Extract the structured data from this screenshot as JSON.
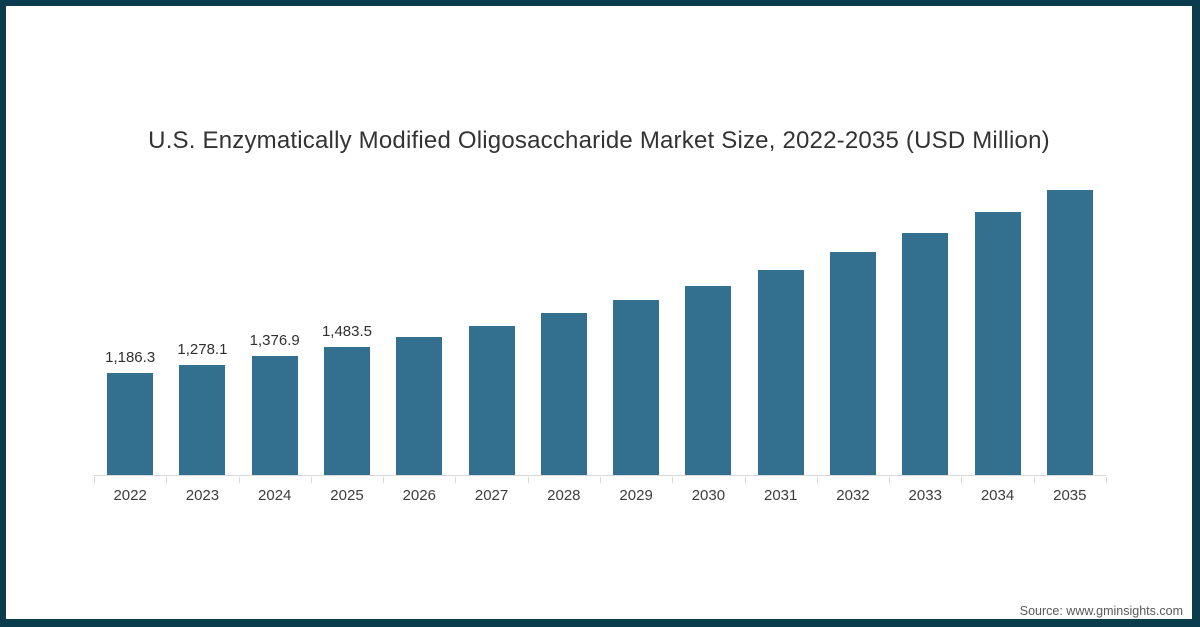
{
  "page": {
    "background": "#ffffff",
    "border_color": "#0b3c4d"
  },
  "chart_data": {
    "type": "bar",
    "title": "U.S. Enzymatically Modified Oligosaccharide Market Size, 2022-2035 (USD Million)",
    "categories": [
      "2022",
      "2023",
      "2024",
      "2025",
      "2026",
      "2027",
      "2028",
      "2029",
      "2030",
      "2031",
      "2032",
      "2033",
      "2034",
      "2035"
    ],
    "values": [
      1186.3,
      1278.1,
      1376.9,
      1483.5,
      1605,
      1730,
      1875,
      2025,
      2195,
      2380,
      2590,
      2805,
      3050,
      3300
    ],
    "bar_labels": [
      "1,186.3",
      "1,278.1",
      "1,376.9",
      "1,483.5",
      "",
      "",
      "",
      "",
      "",
      "",
      "",
      "",
      "",
      ""
    ],
    "xlabel": "",
    "ylabel": "",
    "ylim": [
      0,
      3500
    ],
    "grid": false,
    "legend_position": "none",
    "bar_color": "#336f8f",
    "axis_line_color": "#d9d9d9"
  },
  "footer": {
    "source_label": "Source: www.gminsights.com"
  }
}
